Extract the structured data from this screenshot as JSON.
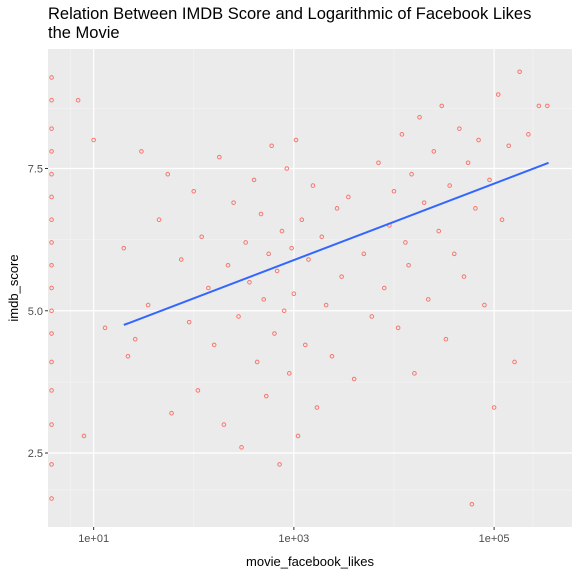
{
  "chart_data": {
    "type": "scatter",
    "title": "Relation Between IMDB Score and Logarithmic of Facebook Likes\n the Movie",
    "xlabel": "movie_facebook_likes",
    "ylabel": "imdb_score",
    "x_scale": "log10",
    "xlim": [
      3.5,
      600000
    ],
    "ylim": [
      1.2,
      9.6
    ],
    "x_ticks": [
      10,
      1000,
      100000
    ],
    "x_tick_labels": [
      "1e+01",
      "1e+03",
      "1e+05"
    ],
    "y_ticks": [
      2.5,
      5.0,
      7.5
    ],
    "y_tick_labels": [
      "2.5",
      "5.0",
      "7.5"
    ],
    "grid": true,
    "background": "#ebebeb",
    "point_color": "#f8766d",
    "line_color": "#3366ff",
    "points_note": "dense scatter of movies; approximate sample of visible point cloud",
    "regression_line": {
      "x": [
        20,
        350000
      ],
      "y": [
        4.75,
        7.6
      ]
    },
    "points": [
      [
        3.8,
        1.7
      ],
      [
        3.8,
        2.3
      ],
      [
        3.8,
        3.0
      ],
      [
        3.8,
        3.6
      ],
      [
        3.8,
        4.1
      ],
      [
        3.8,
        4.6
      ],
      [
        3.8,
        5.0
      ],
      [
        3.8,
        5.4
      ],
      [
        3.8,
        5.8
      ],
      [
        3.8,
        6.2
      ],
      [
        3.8,
        6.6
      ],
      [
        3.8,
        7.0
      ],
      [
        3.8,
        7.4
      ],
      [
        3.8,
        7.8
      ],
      [
        3.8,
        8.2
      ],
      [
        3.8,
        8.7
      ],
      [
        3.8,
        9.1
      ],
      [
        7,
        8.7
      ],
      [
        8,
        2.8
      ],
      [
        10,
        8.0
      ],
      [
        13,
        4.7
      ],
      [
        20,
        6.1
      ],
      [
        22,
        4.2
      ],
      [
        26,
        4.5
      ],
      [
        30,
        7.8
      ],
      [
        35,
        5.1
      ],
      [
        45,
        6.6
      ],
      [
        55,
        7.4
      ],
      [
        60,
        3.2
      ],
      [
        75,
        5.9
      ],
      [
        90,
        4.8
      ],
      [
        100,
        7.1
      ],
      [
        110,
        3.6
      ],
      [
        120,
        6.3
      ],
      [
        140,
        5.4
      ],
      [
        160,
        4.4
      ],
      [
        180,
        7.7
      ],
      [
        200,
        3.0
      ],
      [
        220,
        5.8
      ],
      [
        250,
        6.9
      ],
      [
        280,
        4.9
      ],
      [
        300,
        2.6
      ],
      [
        330,
        6.2
      ],
      [
        360,
        5.5
      ],
      [
        400,
        7.3
      ],
      [
        430,
        4.1
      ],
      [
        470,
        6.7
      ],
      [
        500,
        5.2
      ],
      [
        530,
        3.5
      ],
      [
        560,
        6.0
      ],
      [
        600,
        7.9
      ],
      [
        640,
        4.6
      ],
      [
        680,
        5.7
      ],
      [
        720,
        2.3
      ],
      [
        760,
        6.4
      ],
      [
        800,
        5.0
      ],
      [
        850,
        7.5
      ],
      [
        900,
        3.9
      ],
      [
        950,
        6.1
      ],
      [
        1000,
        5.3
      ],
      [
        1050,
        8.0
      ],
      [
        1100,
        2.8
      ],
      [
        1200,
        6.6
      ],
      [
        1300,
        4.4
      ],
      [
        1400,
        5.9
      ],
      [
        1550,
        7.2
      ],
      [
        1700,
        3.3
      ],
      [
        1900,
        6.3
      ],
      [
        2100,
        5.1
      ],
      [
        2400,
        4.2
      ],
      [
        2700,
        6.8
      ],
      [
        3000,
        5.6
      ],
      [
        3500,
        7.0
      ],
      [
        4000,
        3.8
      ],
      [
        5000,
        6.0
      ],
      [
        6000,
        4.9
      ],
      [
        7000,
        7.6
      ],
      [
        8000,
        5.4
      ],
      [
        9000,
        6.5
      ],
      [
        10000,
        7.1
      ],
      [
        11000,
        4.7
      ],
      [
        12000,
        8.1
      ],
      [
        13000,
        6.2
      ],
      [
        14000,
        5.8
      ],
      [
        15000,
        7.4
      ],
      [
        16000,
        3.9
      ],
      [
        18000,
        8.4
      ],
      [
        20000,
        6.9
      ],
      [
        22000,
        5.2
      ],
      [
        25000,
        7.8
      ],
      [
        28000,
        6.4
      ],
      [
        30000,
        8.6
      ],
      [
        33000,
        4.5
      ],
      [
        36000,
        7.2
      ],
      [
        40000,
        6.0
      ],
      [
        45000,
        8.2
      ],
      [
        50000,
        5.6
      ],
      [
        55000,
        7.6
      ],
      [
        60000,
        1.6
      ],
      [
        65000,
        6.8
      ],
      [
        70000,
        8.0
      ],
      [
        80000,
        5.1
      ],
      [
        90000,
        7.3
      ],
      [
        100000,
        3.3
      ],
      [
        110000,
        8.8
      ],
      [
        120000,
        6.6
      ],
      [
        140000,
        7.9
      ],
      [
        160000,
        4.1
      ],
      [
        180000,
        9.2
      ],
      [
        220000,
        8.1
      ],
      [
        280000,
        8.6
      ],
      [
        340000,
        8.6
      ]
    ]
  }
}
